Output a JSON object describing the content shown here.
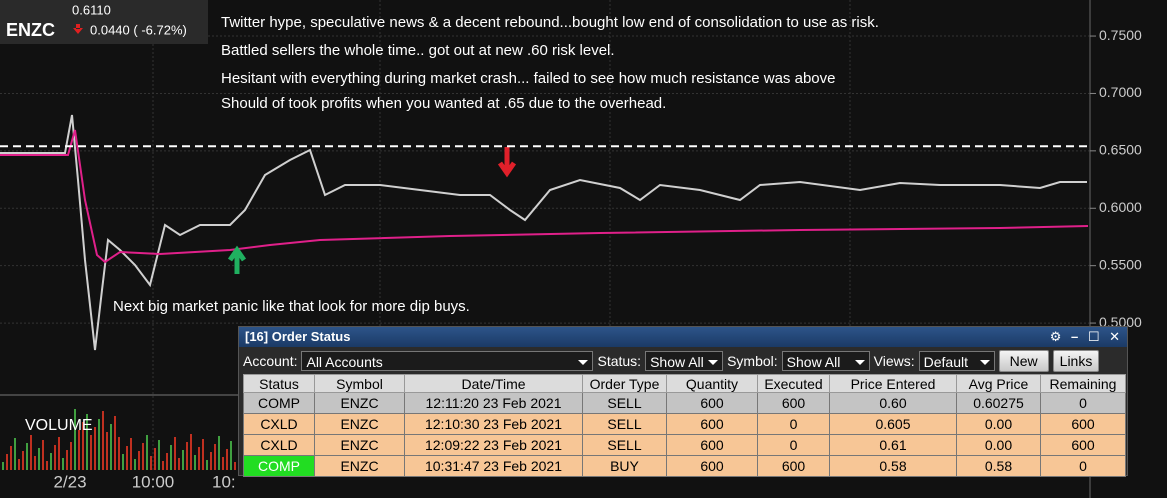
{
  "ticker": {
    "symbol": "ENZC",
    "last": "0.6110",
    "change": "0.0440 ( -6.72%)"
  },
  "price_chart": {
    "ylim": [
      0.4417,
      0.7814
    ],
    "yticks": [
      {
        "value": 0.75,
        "label": "0.7500"
      },
      {
        "value": 0.7,
        "label": "0.7000"
      },
      {
        "value": 0.65,
        "label": "0.6500"
      },
      {
        "value": 0.6,
        "label": "0.6000"
      },
      {
        "value": 0.55,
        "label": "0.5500"
      },
      {
        "value": 0.5,
        "label": "0.5000"
      }
    ],
    "dashed_level": 0.654,
    "x_labels": [
      "2/23",
      "10:00",
      "10:"
    ],
    "volume_label": "VOLUME",
    "annotations": [
      "Twitter hype, speculative news & a decent rebound...bought low end of consolidation to use as risk.",
      "Battled sellers the whole time.. got out at new .60 risk level.",
      "Hesitant with everything during market crash... failed to see how much resistance was above",
      "Should of took profits when you wanted at .65 due to the overhead."
    ],
    "dip_note": "Next big market panic like that look for more dip buys."
  },
  "order_panel": {
    "title": "[16] Order Status",
    "account_label": "Account:",
    "account": "All Accounts",
    "status_label": "Status:",
    "status": "Show All",
    "symbol_label": "Symbol:",
    "symbol": "Show All",
    "views_label": "Views:",
    "views": "Default",
    "new_button": "New",
    "links_button": "Links",
    "columns": [
      "Status",
      "Symbol",
      "Date/Time",
      "Order Type",
      "Quantity",
      "Executed",
      "Price Entered",
      "Avg Price",
      "Remaining"
    ],
    "rows": [
      [
        "COMP",
        "ENZC",
        "12:11:20 23 Feb 2021",
        "SELL",
        "600",
        "600",
        "0.60",
        "0.60275",
        "0"
      ],
      [
        "CXLD",
        "ENZC",
        "12:10:30 23 Feb 2021",
        "SELL",
        "600",
        "0",
        "0.605",
        "0.00",
        "600"
      ],
      [
        "CXLD",
        "ENZC",
        "12:09:22 23 Feb 2021",
        "SELL",
        "600",
        "0",
        "0.61",
        "0.00",
        "600"
      ],
      [
        "COMP",
        "ENZC",
        "10:31:47 23 Feb 2021",
        "BUY",
        "600",
        "600",
        "0.58",
        "0.58",
        "0"
      ]
    ]
  }
}
